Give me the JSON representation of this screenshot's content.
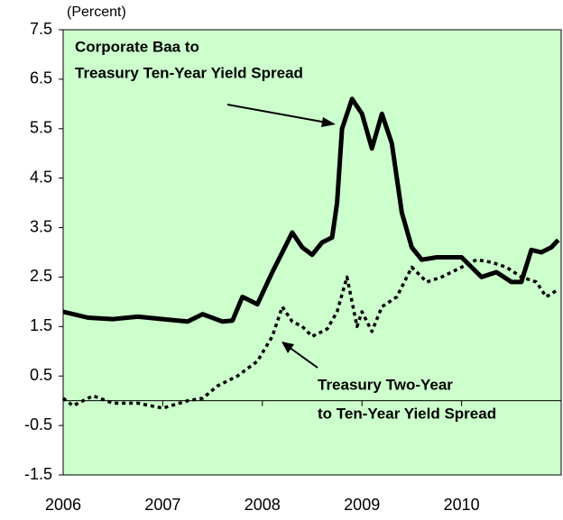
{
  "chart_data": {
    "type": "line",
    "unit_label": "(Percent)",
    "annotations": [
      "Corporate Baa to",
      "Treasury Ten-Year Yield Spread",
      "Treasury Two-Year",
      "to Ten-Year Yield Spread"
    ],
    "background": "#ccffcc",
    "xlim": [
      2006,
      2011
    ],
    "xticks": [
      2006,
      2007,
      2008,
      2009,
      2010
    ],
    "ylim": [
      -1.5,
      7.5
    ],
    "yticks": [
      7.5,
      6.5,
      5.5,
      4.5,
      3.5,
      2.5,
      1.5,
      0.5,
      -0.5,
      -1.5
    ],
    "series": [
      {
        "color": "#000000",
        "dash": false,
        "x": [
          2006.0,
          2006.25,
          2006.5,
          2006.75,
          2007.0,
          2007.25,
          2007.4,
          2007.6,
          2007.7,
          2007.8,
          2007.95,
          2008.1,
          2008.2,
          2008.3,
          2008.4,
          2008.5,
          2008.6,
          2008.7,
          2008.75,
          2008.8,
          2008.9,
          2009.0,
          2009.1,
          2009.2,
          2009.3,
          2009.4,
          2009.5,
          2009.6,
          2009.75,
          2010.0,
          2010.2,
          2010.35,
          2010.5,
          2010.6,
          2010.7,
          2010.8,
          2010.9,
          2010.97
        ],
        "values": [
          1.8,
          1.68,
          1.65,
          1.7,
          1.65,
          1.6,
          1.75,
          1.6,
          1.62,
          2.1,
          1.95,
          2.6,
          3.0,
          3.4,
          3.1,
          2.95,
          3.2,
          3.3,
          4.0,
          5.5,
          6.1,
          5.8,
          5.1,
          5.8,
          5.2,
          3.8,
          3.1,
          2.85,
          2.9,
          2.9,
          2.5,
          2.6,
          2.4,
          2.4,
          3.05,
          3.0,
          3.1,
          3.25
        ]
      },
      {
        "color": "#000000",
        "dash": true,
        "x": [
          2006.0,
          2006.1,
          2006.3,
          2006.5,
          2006.75,
          2007.0,
          2007.25,
          2007.4,
          2007.55,
          2007.75,
          2007.95,
          2008.1,
          2008.2,
          2008.3,
          2008.4,
          2008.5,
          2008.65,
          2008.75,
          2008.85,
          2008.95,
          2009.0,
          2009.1,
          2009.2,
          2009.35,
          2009.5,
          2009.65,
          2009.8,
          2010.0,
          2010.15,
          2010.3,
          2010.45,
          2010.6,
          2010.75,
          2010.85,
          2010.97
        ],
        "values": [
          0.05,
          -0.1,
          0.1,
          -0.05,
          -0.05,
          -0.15,
          0.0,
          0.05,
          0.3,
          0.5,
          0.8,
          1.3,
          1.9,
          1.6,
          1.5,
          1.3,
          1.45,
          1.8,
          2.5,
          1.5,
          1.8,
          1.4,
          1.9,
          2.1,
          2.7,
          2.4,
          2.5,
          2.7,
          2.85,
          2.8,
          2.7,
          2.5,
          2.4,
          2.1,
          2.25
        ]
      }
    ]
  }
}
